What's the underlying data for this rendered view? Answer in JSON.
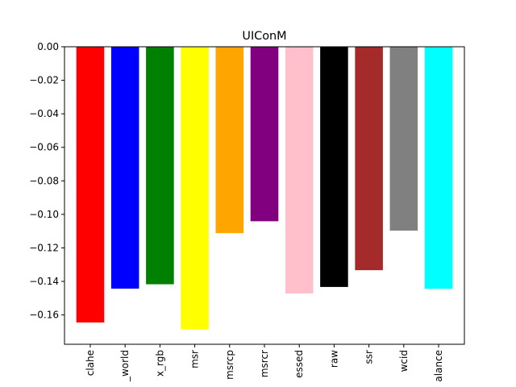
{
  "chart_data": {
    "type": "bar",
    "title": "UIConM",
    "xlabel": "",
    "ylabel": "",
    "ylim": [
      -0.1775,
      0.0
    ],
    "yticks": [
      0.0,
      -0.02,
      -0.04,
      -0.06,
      -0.08,
      -0.1,
      -0.12,
      -0.14,
      -0.16
    ],
    "ytick_labels": [
      "0.00",
      "−0.02",
      "−0.04",
      "−0.06",
      "−0.08",
      "−0.10",
      "−0.12",
      "−0.14",
      "−0.16"
    ],
    "categories": [
      "clahe",
      "_world",
      "x_rgb",
      "msr",
      "msrcp",
      "msrcr",
      "essed",
      "raw",
      "ssr",
      "wcid",
      "alance"
    ],
    "values": [
      -0.1645,
      -0.1443,
      -0.1417,
      -0.1685,
      -0.1112,
      -0.1041,
      -0.1472,
      -0.1433,
      -0.1333,
      -0.1097,
      -0.1444
    ],
    "colors": [
      "#ff0000",
      "#0000ff",
      "#008000",
      "#ffff00",
      "#ffa500",
      "#800080",
      "#ffc0cb",
      "#000000",
      "#a52a2a",
      "#808080",
      "#00ffff"
    ],
    "grid": false,
    "legend": "none"
  }
}
